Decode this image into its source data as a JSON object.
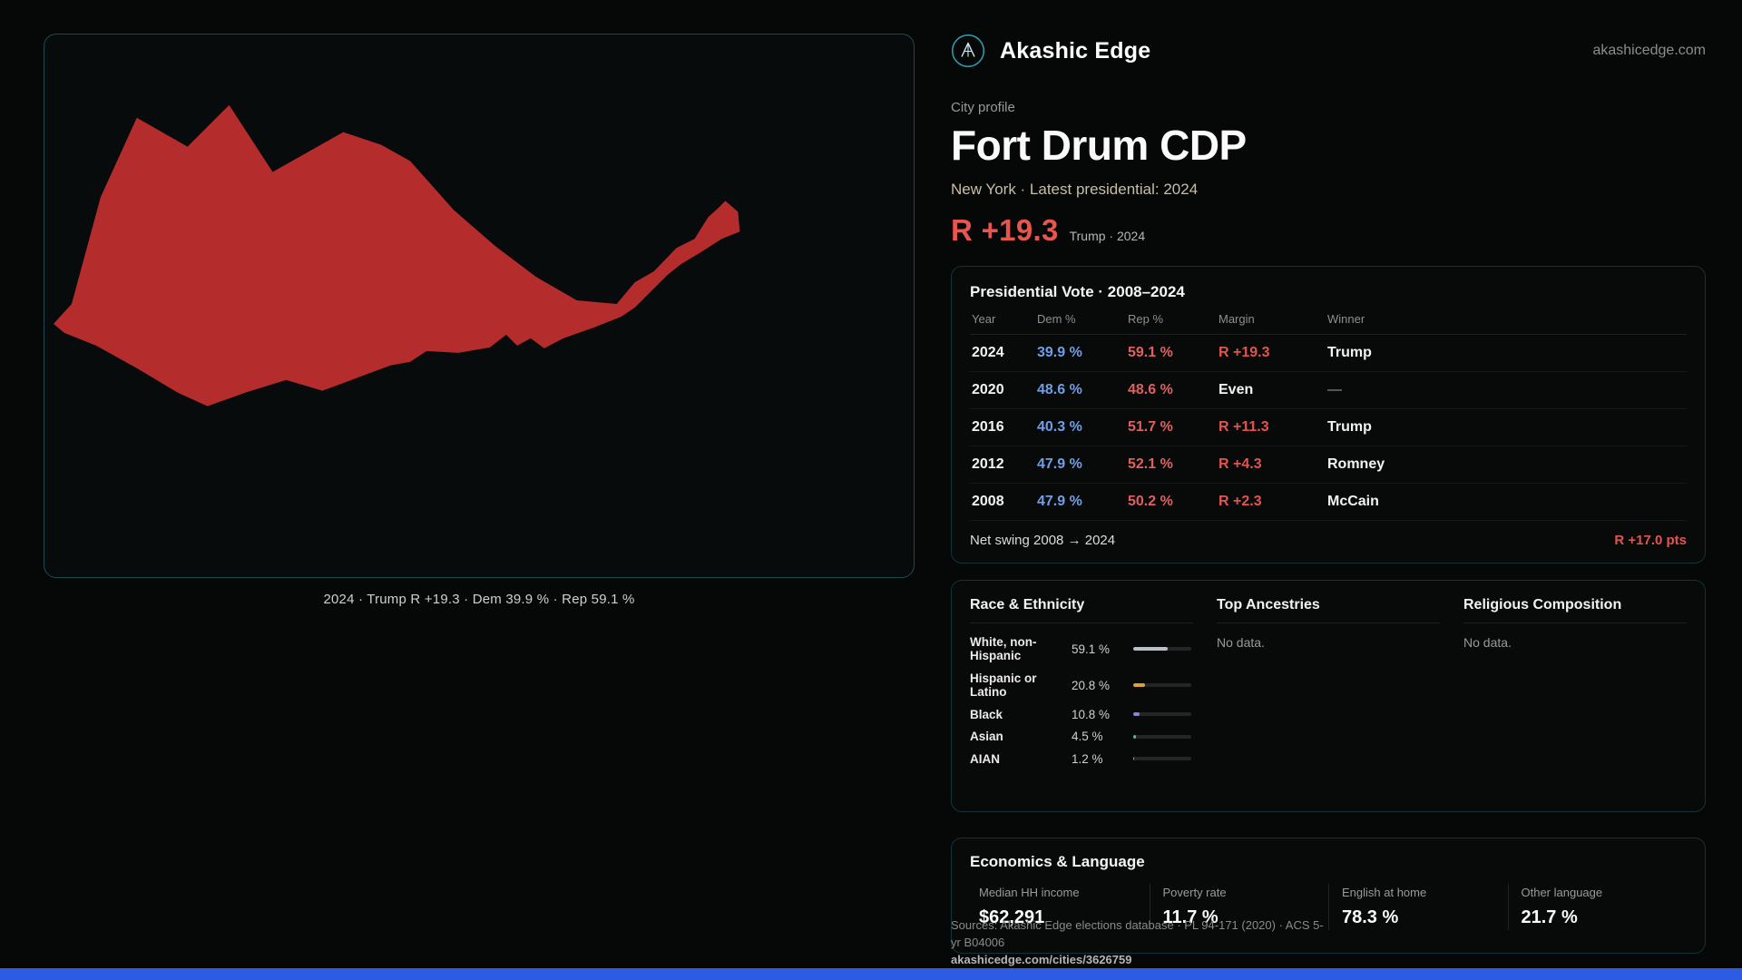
{
  "brand": {
    "name": "Akashic Edge",
    "domain": "akashicedge.com"
  },
  "page": {
    "kicker": "City profile",
    "title": "Fort Drum CDP",
    "subtitle": "New York · Latest presidential: 2024",
    "lean_value": "R +19.3",
    "lean_note": "Trump · 2024"
  },
  "map": {
    "caption": "2024 · Trump R +19.3 · Dem 39.9 % · Rep 59.1 %",
    "shape_color": "#b42c2c"
  },
  "vote_card": {
    "title": "Presidential Vote · 2008–2024",
    "columns": [
      "Year",
      "Dem %",
      "Rep %",
      "Margin",
      "Winner"
    ],
    "rows": [
      {
        "year": "2024",
        "dem": "39.9 %",
        "rep": "59.1 %",
        "margin": "R +19.3",
        "winner": "Trump"
      },
      {
        "year": "2020",
        "dem": "48.6 %",
        "rep": "48.6 %",
        "margin": "Even",
        "winner": "—"
      },
      {
        "year": "2016",
        "dem": "40.3 %",
        "rep": "51.7 %",
        "margin": "R +11.3",
        "winner": "Trump"
      },
      {
        "year": "2012",
        "dem": "47.9 %",
        "rep": "52.1 %",
        "margin": "R +4.3",
        "winner": "Romney"
      },
      {
        "year": "2008",
        "dem": "47.9 %",
        "rep": "50.2 %",
        "margin": "R +2.3",
        "winner": "McCain"
      }
    ],
    "net_swing_label": "Net swing 2008 → 2024",
    "net_swing_value": "R +17.0 pts"
  },
  "demographics": {
    "race": {
      "title": "Race & Ethnicity",
      "rows": [
        {
          "label": "White, non-Hispanic",
          "value": "59.1 %",
          "pct": 59.1,
          "color": "#b9c0c9"
        },
        {
          "label": "Hispanic or Latino",
          "value": "20.8 %",
          "pct": 20.8,
          "color": "#dfa039"
        },
        {
          "label": "Black",
          "value": "10.8 %",
          "pct": 10.8,
          "color": "#8f7fe0"
        },
        {
          "label": "Asian",
          "value": "4.5 %",
          "pct": 4.5,
          "color": "#3cc4a4"
        },
        {
          "label": "AIAN",
          "value": "1.2 %",
          "pct": 1.2,
          "color": "#9aa2ab"
        }
      ]
    },
    "ancestries": {
      "title": "Top Ancestries",
      "empty": "No data."
    },
    "religion": {
      "title": "Religious Composition",
      "empty": "No data."
    }
  },
  "economics": {
    "title": "Economics & Language",
    "stats": [
      {
        "label": "Median HH income",
        "value": "$62,291"
      },
      {
        "label": "Poverty rate",
        "value": "11.7 %"
      },
      {
        "label": "English at home",
        "value": "78.3 %"
      },
      {
        "label": "Other language",
        "value": "21.7 %"
      }
    ]
  },
  "footer": {
    "sources": "Sources: Akashic Edge elections database · PL 94-171 (2020) · ACS 5-yr B04006",
    "permalink": "akashicedge.com/cities/3626759"
  },
  "colors": {
    "accent_red": "#e2554e",
    "dem_blue": "#6f9fe8",
    "rep_red": "#e06060",
    "bottom_bar": "#2d5be3"
  }
}
